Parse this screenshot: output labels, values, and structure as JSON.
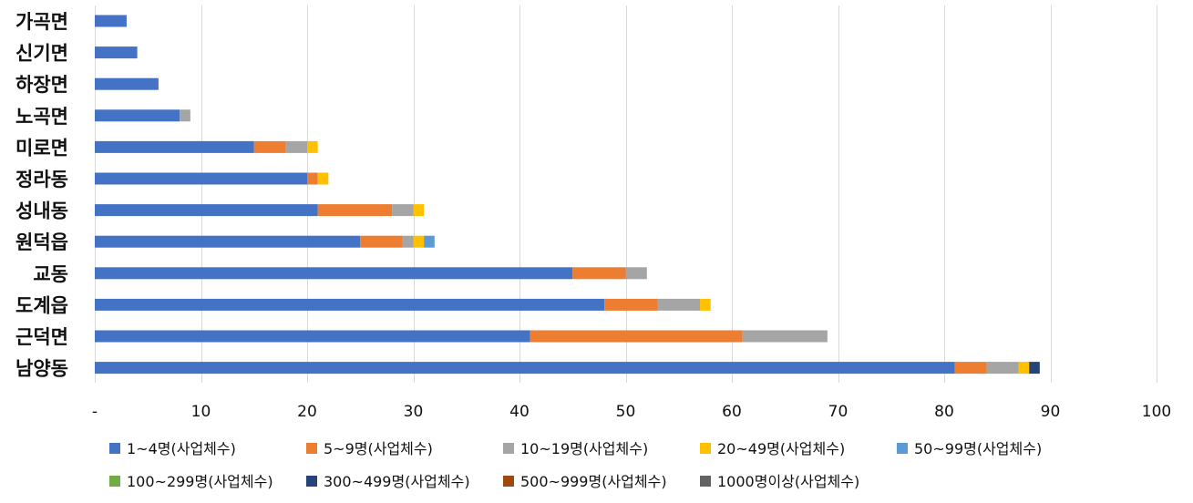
{
  "chart_data": {
    "type": "bar",
    "orientation": "horizontal",
    "stacked": true,
    "title": "",
    "xlabel": "",
    "ylabel": "",
    "xlim": [
      0,
      100
    ],
    "xticks": [
      "-",
      "10",
      "20",
      "30",
      "40",
      "50",
      "60",
      "70",
      "80",
      "90",
      "100"
    ],
    "grid": true,
    "legend_position": "bottom",
    "categories": [
      "가곡면",
      "신기면",
      "하장면",
      "노곡면",
      "미로면",
      "정라동",
      "성내동",
      "원덕읍",
      "교동",
      "도계읍",
      "근덕면",
      "남양동"
    ],
    "series": [
      {
        "name": "1~4명(사업체수)",
        "color": "#4472C4",
        "values": [
          3,
          4,
          6,
          8,
          15,
          20,
          21,
          25,
          45,
          48,
          41,
          81
        ]
      },
      {
        "name": "5~9명(사업체수)",
        "color": "#ED7D31",
        "values": [
          0,
          0,
          0,
          0,
          3,
          1,
          7,
          4,
          5,
          5,
          20,
          3
        ]
      },
      {
        "name": "10~19명(사업체수)",
        "color": "#A5A5A5",
        "values": [
          0,
          0,
          0,
          1,
          2,
          0,
          2,
          1,
          2,
          4,
          8,
          3
        ]
      },
      {
        "name": "20~49명(사업체수)",
        "color": "#FFC000",
        "values": [
          0,
          0,
          0,
          0,
          1,
          1,
          1,
          1,
          0,
          1,
          0,
          1
        ]
      },
      {
        "name": "50~99명(사업체수)",
        "color": "#5B9BD5",
        "values": [
          0,
          0,
          0,
          0,
          0,
          0,
          0,
          1,
          0,
          0,
          0,
          0
        ]
      },
      {
        "name": "100~299명(사업체수)",
        "color": "#70AD47",
        "values": [
          0,
          0,
          0,
          0,
          0,
          0,
          0,
          0,
          0,
          0,
          0,
          0
        ]
      },
      {
        "name": "300~499명(사업체수)",
        "color": "#264478",
        "values": [
          0,
          0,
          0,
          0,
          0,
          0,
          0,
          0,
          0,
          0,
          0,
          1
        ]
      },
      {
        "name": "500~999명(사업체수)",
        "color": "#9E480E",
        "values": [
          0,
          0,
          0,
          0,
          0,
          0,
          0,
          0,
          0,
          0,
          0,
          0
        ]
      },
      {
        "name": "1000명이상(사업체수)",
        "color": "#636363",
        "values": [
          0,
          0,
          0,
          0,
          0,
          0,
          0,
          0,
          0,
          0,
          0,
          0
        ]
      }
    ]
  }
}
